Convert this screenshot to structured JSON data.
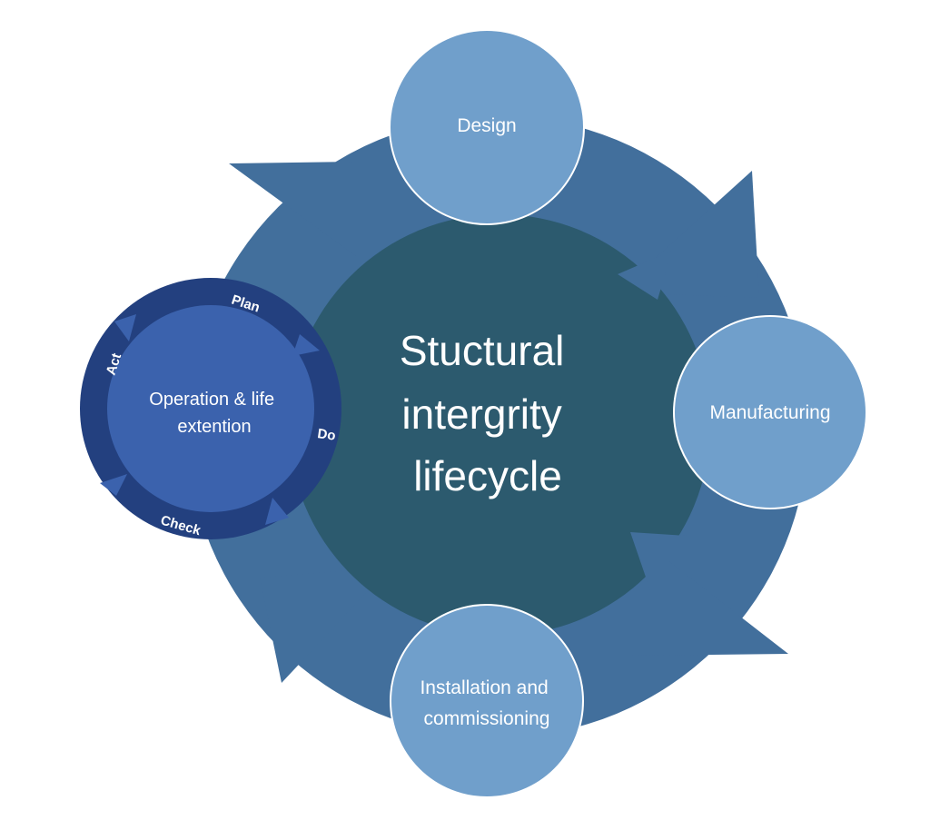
{
  "center": {
    "lines": [
      "Stuctural",
      "intergrity",
      "lifecycle"
    ]
  },
  "nodes": {
    "design": {
      "lines": [
        "Design"
      ]
    },
    "manufacturing": {
      "lines": [
        "Manufacturing"
      ]
    },
    "installation": {
      "lines": [
        "Installation and",
        "commissioning"
      ]
    }
  },
  "operation": {
    "lines": [
      "Operation & life",
      "extention"
    ],
    "cycle": {
      "plan": "Plan",
      "do": "Do",
      "check": "Check",
      "act": "Act"
    }
  },
  "colors": {
    "outer_ring": "#426f9c",
    "inner_hub": "#2c5a6e",
    "node_fill": "#709fcb",
    "operation_fill": "#3b62ad",
    "pdca_ring": "#23407f",
    "text": "#ffffff"
  }
}
